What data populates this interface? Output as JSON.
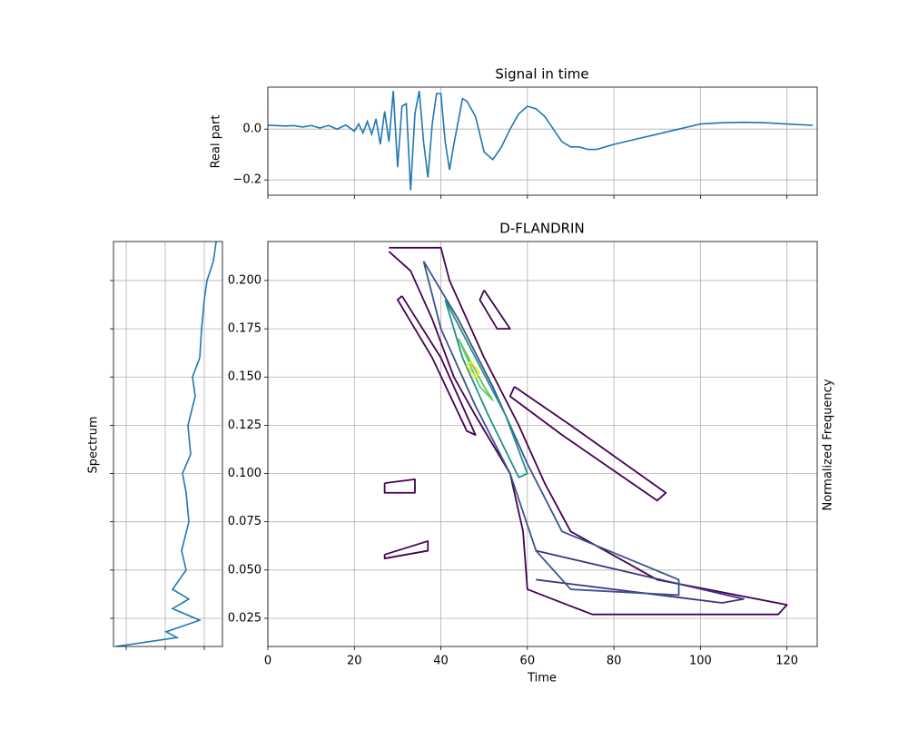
{
  "chart_data": [
    {
      "type": "line",
      "title": "Signal in time",
      "ylabel": "Real part",
      "color": "#1f77b4",
      "grid": true,
      "x": [
        0,
        2,
        4,
        6,
        8,
        10,
        12,
        14,
        16,
        18,
        20,
        21,
        22,
        23,
        24,
        25,
        26,
        27,
        28,
        29,
        30,
        31,
        32,
        33,
        34,
        35,
        36,
        37,
        38,
        39,
        40,
        41,
        42,
        43,
        44,
        45,
        46,
        47,
        48,
        50,
        52,
        54,
        56,
        58,
        60,
        62,
        64,
        66,
        68,
        70,
        72,
        74,
        76,
        78,
        80,
        85,
        90,
        95,
        100,
        105,
        110,
        115,
        120,
        126
      ],
      "values": [
        0.015,
        0.014,
        0.012,
        0.014,
        0.008,
        0.014,
        0.004,
        0.014,
        0.0,
        0.016,
        -0.008,
        0.02,
        -0.015,
        0.03,
        -0.02,
        0.04,
        -0.06,
        0.07,
        -0.05,
        0.15,
        -0.15,
        0.09,
        0.1,
        -0.24,
        0.06,
        0.15,
        -0.05,
        -0.19,
        0.02,
        0.14,
        0.14,
        -0.05,
        -0.16,
        -0.06,
        0.03,
        0.12,
        0.11,
        0.08,
        0.05,
        -0.09,
        -0.12,
        -0.07,
        0.0,
        0.06,
        0.09,
        0.08,
        0.05,
        0.0,
        -0.05,
        -0.07,
        -0.07,
        -0.08,
        -0.08,
        -0.07,
        -0.06,
        -0.04,
        -0.02,
        0.0,
        0.02,
        0.025,
        0.027,
        0.025,
        0.02,
        0.015
      ],
      "xlim": [
        0,
        127
      ],
      "ylim": [
        -0.26,
        0.165
      ],
      "yticks": [
        {
          "value": -0.2,
          "label": "−0.2"
        },
        {
          "value": 0,
          "label": "0.0"
        }
      ]
    },
    {
      "type": "spectrum",
      "ylabel": "Spectrum",
      "color": "#1f77b4",
      "grid": true,
      "y": [
        0.0104,
        0.015,
        0.018,
        0.024,
        0.03,
        0.035,
        0.04,
        0.05,
        0.06,
        0.075,
        0.09,
        0.1,
        0.11,
        0.125,
        0.14,
        0.15,
        0.16,
        0.175,
        0.19,
        0.2,
        0.21,
        0.22
      ],
      "values": [
        0.03,
        0.7,
        0.58,
        0.95,
        0.65,
        0.83,
        0.65,
        0.8,
        0.75,
        0.83,
        0.8,
        0.76,
        0.85,
        0.82,
        0.9,
        0.87,
        0.95,
        0.97,
        1.0,
        1.03,
        1.1,
        1.13
      ],
      "xlim": [
        0,
        1.2
      ],
      "xticks": [
        0.14,
        0.57,
        1.0
      ],
      "ylim": [
        0.0104,
        0.2202
      ]
    },
    {
      "type": "contour",
      "title": "D-FLANDRIN",
      "xlabel": "Time",
      "ylabel": "Normalized Frequency",
      "grid": true,
      "xlim": [
        0,
        127
      ],
      "ylim": [
        0.0104,
        0.2202
      ],
      "xticks": [
        0,
        20,
        40,
        60,
        80,
        100,
        120
      ],
      "yticks": [
        {
          "value": 0.025,
          "label": "0.025"
        },
        {
          "value": 0.05,
          "label": "0.050"
        },
        {
          "value": 0.075,
          "label": "0.075"
        },
        {
          "value": 0.1,
          "label": "0.100"
        },
        {
          "value": 0.125,
          "label": "0.125"
        },
        {
          "value": 0.15,
          "label": "0.150"
        },
        {
          "value": 0.175,
          "label": "0.175"
        },
        {
          "value": 0.2,
          "label": "0.200"
        }
      ],
      "contours": [
        {
          "color": "#440154",
          "x": [
            28,
            40,
            42,
            50,
            58,
            64,
            70,
            90,
            120,
            118,
            75,
            60,
            59,
            56,
            48,
            43,
            38,
            33,
            28
          ],
          "y": [
            0.217,
            0.217,
            0.2,
            0.16,
            0.125,
            0.095,
            0.07,
            0.045,
            0.032,
            0.027,
            0.027,
            0.04,
            0.07,
            0.1,
            0.13,
            0.15,
            0.18,
            0.205,
            0.215
          ]
        },
        {
          "color": "#46327e",
          "x": [
            62,
            110,
            105,
            62
          ],
          "y": [
            0.06,
            0.035,
            0.033,
            0.045
          ]
        },
        {
          "color": "#3b528b",
          "x": [
            36,
            44,
            52,
            60,
            68,
            95,
            95,
            70,
            62,
            56,
            48,
            40,
            36
          ],
          "y": [
            0.21,
            0.18,
            0.145,
            0.105,
            0.07,
            0.045,
            0.037,
            0.04,
            0.06,
            0.1,
            0.135,
            0.175,
            0.21
          ]
        },
        {
          "color": "#21918c",
          "x": [
            41,
            48,
            55,
            60,
            58,
            51,
            45,
            41
          ],
          "y": [
            0.19,
            0.16,
            0.13,
            0.1,
            0.098,
            0.13,
            0.16,
            0.19
          ]
        },
        {
          "color": "#5ec962",
          "x": [
            44,
            50,
            52,
            49,
            44
          ],
          "y": [
            0.17,
            0.145,
            0.138,
            0.145,
            0.17
          ]
        },
        {
          "color": "#fde725",
          "x": [
            47,
            49,
            48,
            46,
            47
          ],
          "y": [
            0.158,
            0.152,
            0.15,
            0.156,
            0.158
          ]
        },
        {
          "color": "#440154",
          "x": [
            57,
            70,
            92,
            90,
            68,
            56,
            57
          ],
          "y": [
            0.145,
            0.125,
            0.09,
            0.086,
            0.12,
            0.14,
            0.145
          ]
        },
        {
          "color": "#440154",
          "x": [
            31,
            40,
            47,
            48,
            46,
            38,
            30,
            31
          ],
          "y": [
            0.192,
            0.16,
            0.125,
            0.12,
            0.122,
            0.16,
            0.19,
            0.192
          ]
        },
        {
          "color": "#440154",
          "x": [
            50,
            56,
            53,
            49,
            50
          ],
          "y": [
            0.195,
            0.175,
            0.175,
            0.19,
            0.195
          ]
        },
        {
          "color": "#440154",
          "x": [
            27,
            34,
            34,
            27,
            27
          ],
          "y": [
            0.095,
            0.097,
            0.09,
            0.09,
            0.095
          ]
        },
        {
          "color": "#440154",
          "x": [
            27,
            37,
            37,
            27,
            27
          ],
          "y": [
            0.058,
            0.065,
            0.06,
            0.056,
            0.058
          ]
        }
      ]
    }
  ]
}
